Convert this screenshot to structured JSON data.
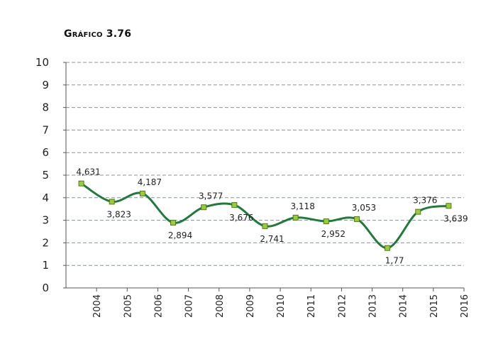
{
  "chart_data": {
    "type": "line",
    "title": "Gráfico 3.76",
    "xlabel": "",
    "ylabel": "",
    "ylim": [
      0,
      10
    ],
    "y_ticks": [
      0,
      1,
      2,
      3,
      4,
      5,
      6,
      7,
      8,
      9,
      10
    ],
    "x_ticks": [
      "2004",
      "2005",
      "2006",
      "2007",
      "2008",
      "2009",
      "2010",
      "2011",
      "2012",
      "2013",
      "2014",
      "2015",
      "2016"
    ],
    "grid": true,
    "legend": "none",
    "series": [
      {
        "values": [
          4.631,
          3.823,
          4.187,
          2.894,
          3.577,
          3.676,
          2.741,
          3.118,
          2.952,
          3.053,
          1.77,
          3.376,
          3.639
        ],
        "labels": [
          "4,631",
          "3,823",
          "4,187",
          "2,894",
          "3,577",
          "3,676",
          "2,741",
          "3,118",
          "2,952",
          "3,053",
          "1,77",
          "3,376",
          "3,639"
        ],
        "color": "#1e7b3a",
        "marker_color": "#9acd32"
      }
    ]
  }
}
